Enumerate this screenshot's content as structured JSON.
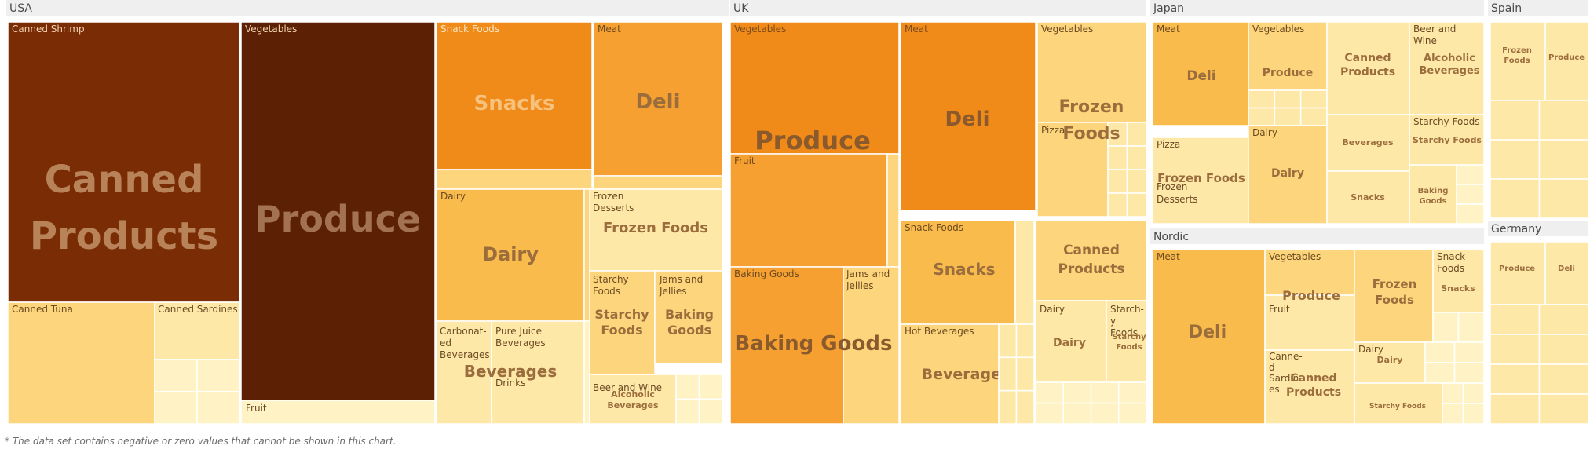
{
  "chart_data": {
    "type": "treemap",
    "colors": {
      "darkest": "#5c2104",
      "dark": "#7a2d05",
      "deep_orange": "#f08b1a",
      "orange": "#f5a030",
      "light_orange": "#f9bb4c",
      "pale": "#fdd57c",
      "paler": "#fee8a8",
      "palest": "#fff2c4",
      "header_bg": "#efefef"
    },
    "footnote": "* The data set contains negative or zero values that cannot be shown in this chart.",
    "regions": [
      {
        "name": "USA",
        "groups": [
          {
            "name": "Canned Products",
            "items": [
              "Canned Shrimp",
              "Canned Tuna",
              "Canned Sardines"
            ]
          },
          {
            "name": "Produce",
            "items": [
              "Vegetables",
              "Fruit"
            ]
          },
          {
            "name": "Snacks",
            "items": [
              "Snack Foods"
            ]
          },
          {
            "name": "Deli",
            "items": [
              "Meat"
            ]
          },
          {
            "name": "Dairy",
            "items": [
              "Dairy"
            ]
          },
          {
            "name": "Frozen Foods",
            "items": [
              "Frozen Desserts"
            ]
          },
          {
            "name": "Starchy Foods",
            "items": [
              "Starchy Foods"
            ]
          },
          {
            "name": "Baking Goods",
            "items": [
              "Jams and Jellies"
            ]
          },
          {
            "name": "Beverages",
            "items": [
              "Carbonated Beverages",
              "Pure Juice Beverages",
              "Drinks"
            ]
          },
          {
            "name": "Alcoholic Beverages",
            "items": [
              "Beer and Wine"
            ]
          }
        ]
      },
      {
        "name": "UK",
        "groups": [
          {
            "name": "Produce",
            "items": [
              "Vegetables",
              "Fruit"
            ]
          },
          {
            "name": "Deli",
            "items": [
              "Meat"
            ]
          },
          {
            "name": "Frozen Foods",
            "items": [
              "Vegetables",
              "Pizza"
            ]
          },
          {
            "name": "Baking Goods",
            "items": [
              "Baking Goods",
              "Jams and Jellies"
            ]
          },
          {
            "name": "Snacks",
            "items": [
              "Snack Foods"
            ]
          },
          {
            "name": "Canned Products",
            "items": []
          },
          {
            "name": "Beverages",
            "items": [
              "Hot Beverages"
            ]
          },
          {
            "name": "Dairy",
            "items": [
              "Dairy"
            ]
          },
          {
            "name": "Starchy Foods",
            "items": [
              "Starchy Foods"
            ]
          }
        ]
      },
      {
        "name": "Japan",
        "groups": [
          {
            "name": "Deli",
            "items": [
              "Meat"
            ]
          },
          {
            "name": "Produce",
            "items": [
              "Vegetables"
            ]
          },
          {
            "name": "Canned Products",
            "items": []
          },
          {
            "name": "Alcoholic Beverages",
            "items": [
              "Beer and Wine"
            ]
          },
          {
            "name": "Frozen Foods",
            "items": [
              "Pizza",
              "Frozen Desserts"
            ]
          },
          {
            "name": "Dairy",
            "items": [
              "Dairy"
            ]
          },
          {
            "name": "Beverages",
            "items": []
          },
          {
            "name": "Starchy Foods",
            "items": [
              "Starchy Foods"
            ]
          },
          {
            "name": "Snacks",
            "items": []
          },
          {
            "name": "Baking Goods",
            "items": []
          }
        ]
      },
      {
        "name": "Nordic",
        "groups": [
          {
            "name": "Deli",
            "items": [
              "Meat"
            ]
          },
          {
            "name": "Produce",
            "items": [
              "Vegetables",
              "Fruit"
            ]
          },
          {
            "name": "Frozen Foods",
            "items": []
          },
          {
            "name": "Snacks",
            "items": [
              "Snack Foods"
            ]
          },
          {
            "name": "Canned Products",
            "items": [
              "Canned Sardines"
            ]
          },
          {
            "name": "Dairy",
            "items": [
              "Dairy"
            ]
          },
          {
            "name": "Starchy Foods",
            "items": []
          }
        ]
      },
      {
        "name": "Spain",
        "groups": [
          {
            "name": "Frozen Foods",
            "items": []
          },
          {
            "name": "Produce",
            "items": []
          }
        ]
      },
      {
        "name": "Germany",
        "groups": [
          {
            "name": "Produce",
            "items": []
          },
          {
            "name": "Deli",
            "items": []
          }
        ]
      }
    ]
  }
}
